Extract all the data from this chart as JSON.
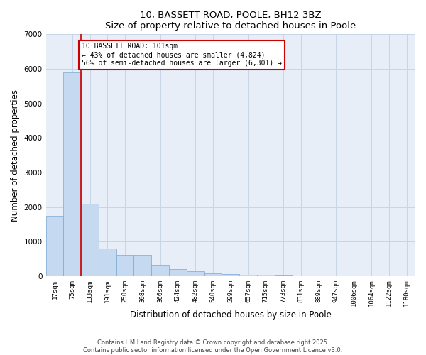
{
  "title": "10, BASSETT ROAD, POOLE, BH12 3BZ",
  "subtitle": "Size of property relative to detached houses in Poole",
  "xlabel": "Distribution of detached houses by size in Poole",
  "ylabel": "Number of detached properties",
  "categories": [
    "17sqm",
    "75sqm",
    "133sqm",
    "191sqm",
    "250sqm",
    "308sqm",
    "366sqm",
    "424sqm",
    "482sqm",
    "540sqm",
    "599sqm",
    "657sqm",
    "715sqm",
    "773sqm",
    "831sqm",
    "889sqm",
    "947sqm",
    "1006sqm",
    "1064sqm",
    "1122sqm",
    "1180sqm"
  ],
  "values": [
    1750,
    5900,
    2100,
    800,
    620,
    620,
    330,
    200,
    150,
    90,
    70,
    50,
    35,
    10,
    5,
    3,
    2,
    2,
    1,
    1,
    0
  ],
  "bar_color": "#c5d9f0",
  "bar_edge_color": "#7aa8d4",
  "grid_color": "#c8d4e8",
  "background_color": "#e8eef8",
  "vline_color": "#cc0000",
  "vline_x": 1.5,
  "annotation_text": "10 BASSETT ROAD: 101sqm\n← 43% of detached houses are smaller (4,824)\n56% of semi-detached houses are larger (6,301) →",
  "annotation_box_color": "#cc0000",
  "ylim": [
    0,
    7000
  ],
  "yticks": [
    0,
    1000,
    2000,
    3000,
    4000,
    5000,
    6000,
    7000
  ],
  "footer_line1": "Contains HM Land Registry data © Crown copyright and database right 2025.",
  "footer_line2": "Contains public sector information licensed under the Open Government Licence v3.0."
}
